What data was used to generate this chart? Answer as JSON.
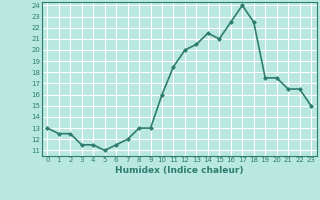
{
  "x": [
    0,
    1,
    2,
    3,
    4,
    5,
    6,
    7,
    8,
    9,
    10,
    11,
    12,
    13,
    14,
    15,
    16,
    17,
    18,
    19,
    20,
    21,
    22,
    23
  ],
  "y": [
    13,
    12.5,
    12.5,
    11.5,
    11.5,
    11,
    11.5,
    12,
    13,
    13,
    16,
    18.5,
    20,
    20.5,
    21.5,
    21,
    22.5,
    24,
    22.5,
    17.5,
    17.5,
    16.5,
    16.5,
    15
  ],
  "line_color": "#2e7d6e",
  "marker": "D",
  "marker_size": 2,
  "background_color": "#b8e8e0",
  "grid_color": "#ffffff",
  "xlabel": "Humidex (Indice chaleur)",
  "xlim": [
    -0.5,
    23.5
  ],
  "ylim": [
    10.5,
    24.3
  ],
  "yticks": [
    11,
    12,
    13,
    14,
    15,
    16,
    17,
    18,
    19,
    20,
    21,
    22,
    23,
    24
  ],
  "xticks": [
    0,
    1,
    2,
    3,
    4,
    5,
    6,
    7,
    8,
    9,
    10,
    11,
    12,
    13,
    14,
    15,
    16,
    17,
    18,
    19,
    20,
    21,
    22,
    23
  ],
  "tick_fontsize": 5,
  "xlabel_fontsize": 6.5,
  "line_width": 1.2
}
